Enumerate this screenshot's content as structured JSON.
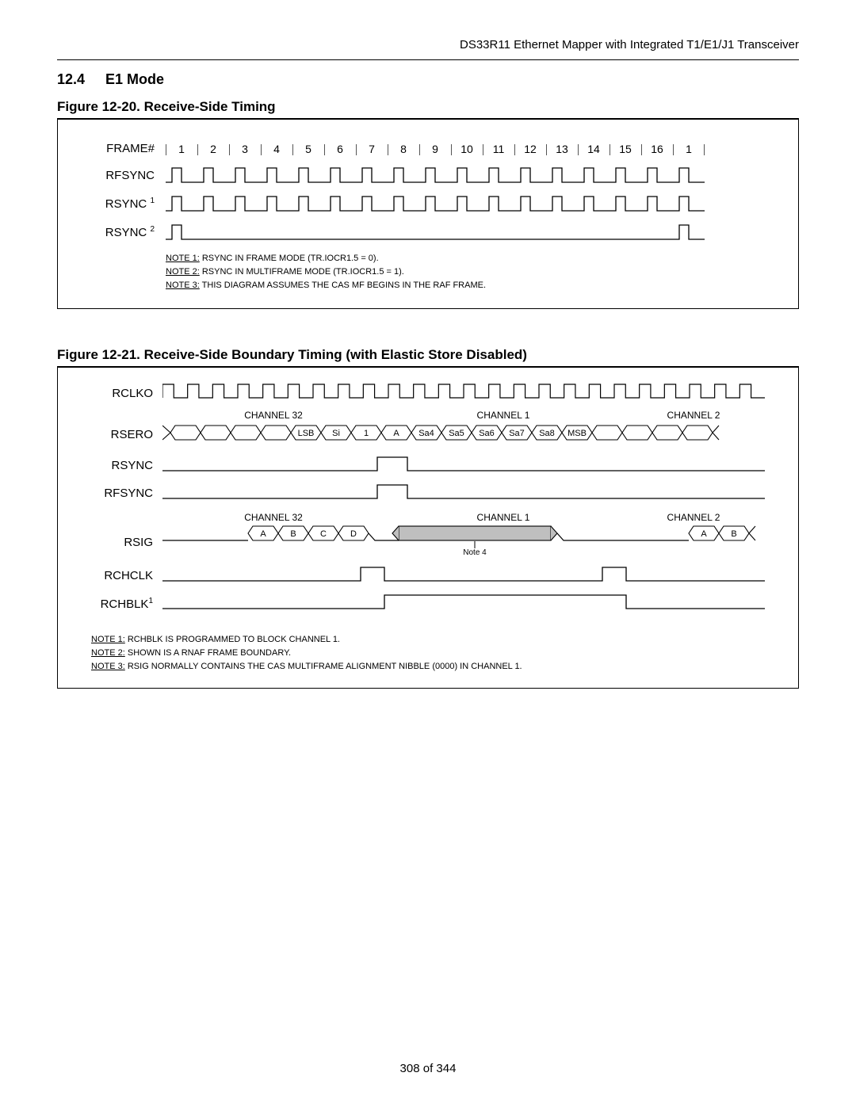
{
  "header": "DS33R11 Ethernet Mapper with Integrated T1/E1/J1 Transceiver",
  "section": {
    "num": "12.4",
    "title": "E1 Mode"
  },
  "fig20": {
    "title": "Figure 12-20. Receive-Side Timing",
    "row_frame": "FRAME#",
    "frame_nums": [
      "1",
      "2",
      "3",
      "4",
      "5",
      "6",
      "7",
      "8",
      "9",
      "10",
      "11",
      "12",
      "13",
      "14",
      "15",
      "16",
      "1"
    ],
    "row_rfsync": "RFSYNC",
    "row_rsync1": "RSYNC",
    "row_rsync1_sup": "1",
    "row_rsync2": "RSYNC",
    "row_rsync2_sup": "2",
    "notes": {
      "n1a": "NOTE 1:",
      "n1b": " RSYNC IN FRAME MODE (TR.IOCR1.5 = 0).",
      "n2a": "NOTE 2:",
      "n2b": " RSYNC IN MULTIFRAME MODE (TR.IOCR1.5 = 1).",
      "n3a": "NOTE 3:",
      "n3b": " THIS DIAGRAM ASSUMES THE CAS MF BEGINS IN THE RAF FRAME."
    }
  },
  "fig21": {
    "title": "Figure 12-21. Receive-Side Boundary Timing (with Elastic Store Disabled)",
    "labels": {
      "rclko": "RCLKO",
      "rsero": "RSERO",
      "rsync": "RSYNC",
      "rfsync": "RFSYNC",
      "rsig": "RSIG",
      "rchclk": "RCHCLK",
      "rchblk": "RCHBLK",
      "rchblk_sup": "1"
    },
    "chan32": "CHANNEL 32",
    "chan1": "CHANNEL 1",
    "chan2": "CHANNEL 2",
    "rsero_bits": [
      "",
      "",
      "",
      "",
      "LSB",
      "Si",
      "1",
      "A",
      "Sa4",
      "Sa5",
      "Sa6",
      "Sa7",
      "Sa8",
      "MSB",
      "",
      "",
      "",
      ""
    ],
    "rsig_left": [
      "A",
      "B",
      "C",
      "D"
    ],
    "rsig_right": [
      "A",
      "B"
    ],
    "note4": "Note 4",
    "notes": {
      "n1a": "NOTE 1:",
      "n1b": " RCHBLK IS PROGRAMMED TO BLOCK CHANNEL 1.",
      "n2a": "NOTE 2:",
      "n2b": " SHOWN IS A RNAF FRAME BOUNDARY.",
      "n3a": "NOTE 3:",
      "n3b": " RSIG NORMALLY CONTAINS THE CAS MULTIFRAME ALIGNMENT NIBBLE (0000) IN CHANNEL 1."
    }
  },
  "footer": "308 of 344"
}
